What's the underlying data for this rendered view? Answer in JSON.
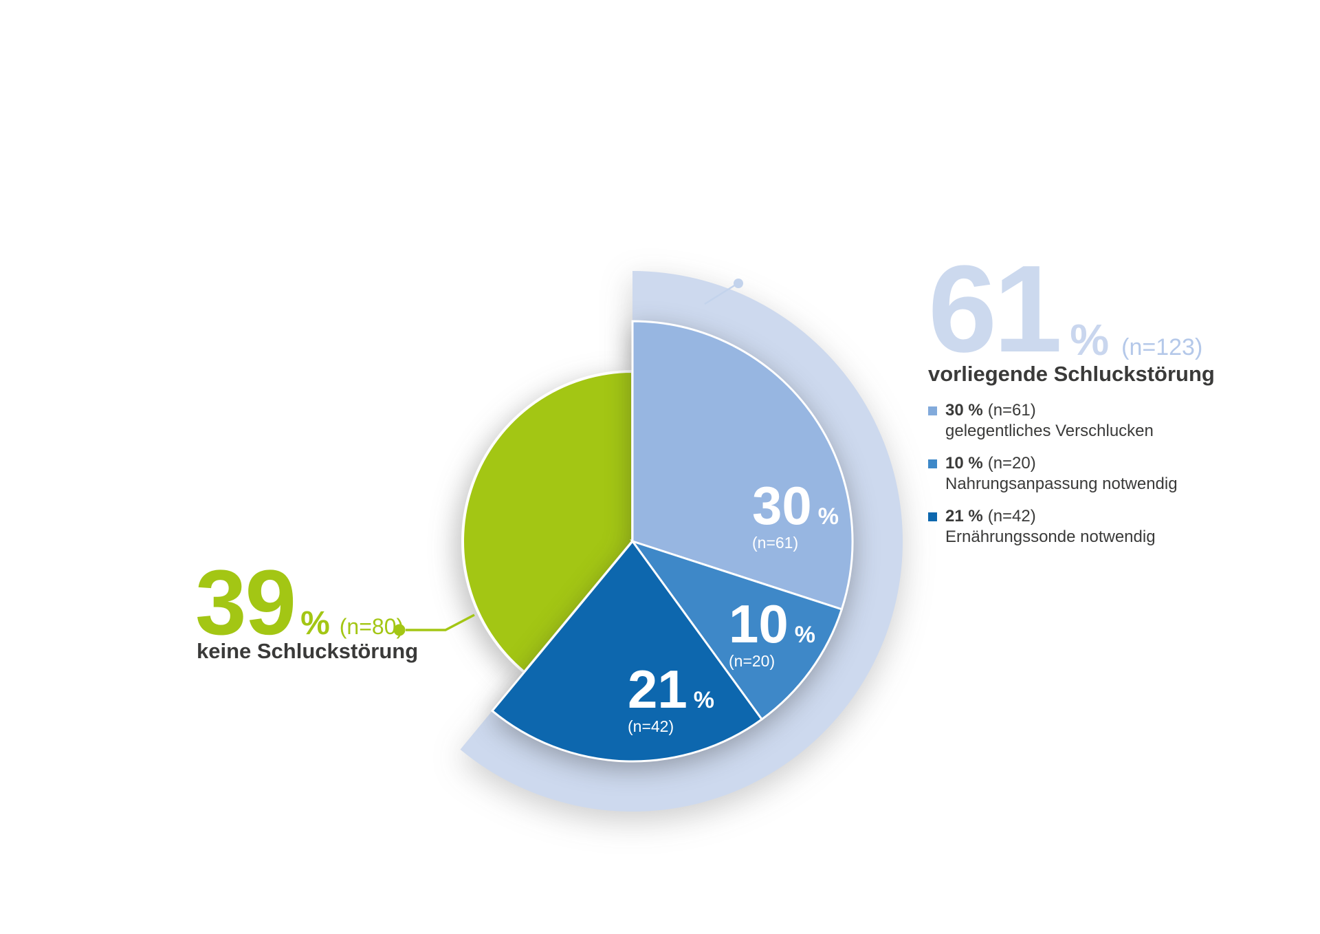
{
  "colors": {
    "ring": "#cdd9ee",
    "slice_30": "#97b6e1",
    "slice_10": "#3e88c8",
    "slice_21": "#0d67ae",
    "green": "#a3c614",
    "big_number_blue": "#ccd9ee",
    "percent_sign_blue": "#c9d6ee",
    "n_value_blue": "#b4c8e9",
    "dark_text": "#3a3a39",
    "legend_sq_30": "#82aadb",
    "legend_sq_10": "#3e88c8",
    "legend_sq_21": "#0d67ae",
    "connector_green": "#a3c614",
    "connector_blue": "#c3d3ec",
    "separator": "#ffffff"
  },
  "chart_data": {
    "type": "pie",
    "units": "percent",
    "direction": "clockwise",
    "start_angle_deg": 0,
    "legend_position": "right",
    "groups": [
      {
        "label": "vorliegende Schluckstörung",
        "percent": 61,
        "n": 123
      },
      {
        "label": "keine Schluckstörung",
        "percent": 39,
        "n": 80
      }
    ],
    "segments": [
      {
        "label": "gelegentliches Verschlucken",
        "percent": 30,
        "n": 61,
        "group": "vorliegende Schluckstörung"
      },
      {
        "label": "Nahrungsanpassung notwendig",
        "percent": 10,
        "n": 20,
        "group": "vorliegende Schluckstörung"
      },
      {
        "label": "Ernährungssonde notwendig",
        "percent": 21,
        "n": 42,
        "group": "vorliegende Schluckstörung"
      },
      {
        "label": "keine Schluckstörung",
        "percent": 39,
        "n": 80,
        "group": "keine Schluckstörung"
      }
    ]
  },
  "callout_right": {
    "value": "61",
    "percent_sign": "%",
    "n_text": "(n=123)",
    "title": "vorliegende Schluckstörung"
  },
  "callout_left": {
    "value": "39",
    "percent_sign": "%",
    "n_text": "(n=80)",
    "title": "keine Schluckstörung"
  },
  "legend": {
    "items": [
      {
        "value_text": "30 %",
        "n_text": "(n=61)",
        "description": "gelegentliches Verschlucken"
      },
      {
        "value_text": "10 %",
        "n_text": "(n=20)",
        "description": "Nahrungsanpassung notwendig"
      },
      {
        "value_text": "21 %",
        "n_text": "(n=42)",
        "description": "Ernährungssonde notwendig"
      }
    ]
  },
  "slice_labels": [
    {
      "value": "30",
      "percent_sign": "%",
      "n_text": "(n=61)"
    },
    {
      "value": "10",
      "percent_sign": "%",
      "n_text": "(n=20)"
    },
    {
      "value": "21",
      "percent_sign": "%",
      "n_text": "(n=42)"
    }
  ]
}
